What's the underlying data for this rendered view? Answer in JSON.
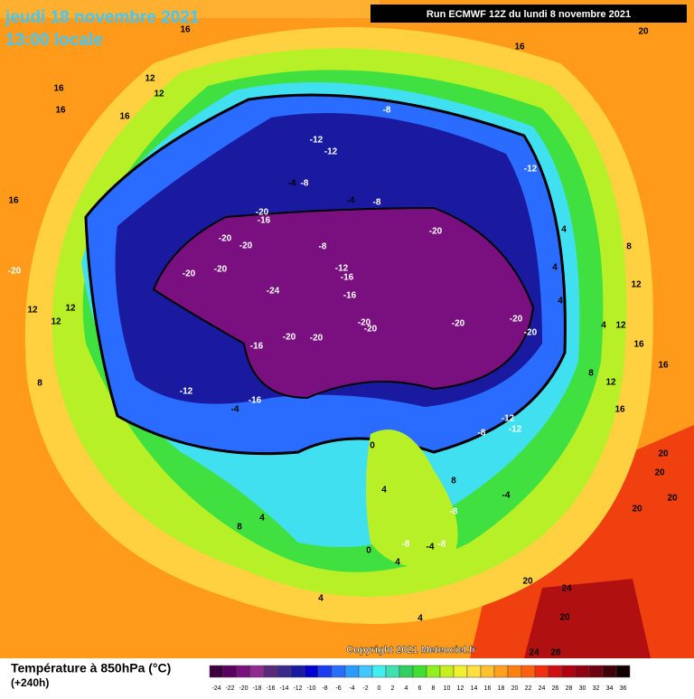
{
  "header": {
    "date": "jeudi 18 novembre 2021",
    "time": "13:00 locale",
    "run": "Run ECMWF 12Z du lundi 8 novembre 2021"
  },
  "contour_labels": [
    16,
    20,
    16,
    16,
    12,
    12,
    16,
    16,
    -8,
    -12,
    -12,
    -12,
    -4,
    -8,
    -4,
    -8,
    16,
    -20,
    -16,
    -20,
    -20,
    -20,
    -8,
    4,
    8,
    -20,
    -20,
    -20,
    -12,
    -16,
    4,
    12,
    -24,
    -16,
    4,
    12,
    12,
    12,
    -20,
    -20,
    -20,
    -20,
    -20,
    4,
    12,
    16,
    -16,
    -20,
    -20,
    8,
    16,
    8,
    -12,
    -16,
    -4,
    12,
    16,
    -12,
    -12,
    -8,
    0,
    20,
    4,
    20,
    20,
    -4,
    8,
    4,
    8,
    -8,
    20,
    0,
    -8,
    -4,
    -8,
    4,
    20,
    24,
    4,
    4,
    20,
    24,
    28
  ],
  "legend": {
    "title": "Température à 850hPa (°C)",
    "lead": "(+240h)",
    "ticks": [
      -24,
      -22,
      -20,
      -18,
      -16,
      -14,
      -12,
      -10,
      -8,
      -6,
      -4,
      -2,
      0,
      2,
      4,
      6,
      8,
      10,
      12,
      14,
      16,
      18,
      20,
      22,
      24,
      26,
      28,
      30,
      32,
      34,
      36
    ],
    "colors": [
      "#3d0040",
      "#5c0060",
      "#7a1080",
      "#8e2a90",
      "#5a2a7a",
      "#3a2a8a",
      "#1a1aa0",
      "#0000d0",
      "#1a3cf0",
      "#2a6cff",
      "#2a9cff",
      "#40c8ff",
      "#40f0f0",
      "#40e0b0",
      "#30d060",
      "#40e030",
      "#90f020",
      "#c8f020",
      "#f0f030",
      "#ffe040",
      "#ffc030",
      "#ffa020",
      "#ff8010",
      "#ff6010",
      "#f03010",
      "#d01010",
      "#b00010",
      "#900010",
      "#700010",
      "#400008",
      "#100000"
    ]
  },
  "copyright": "Copyright 2021 Meteociel.fr"
}
